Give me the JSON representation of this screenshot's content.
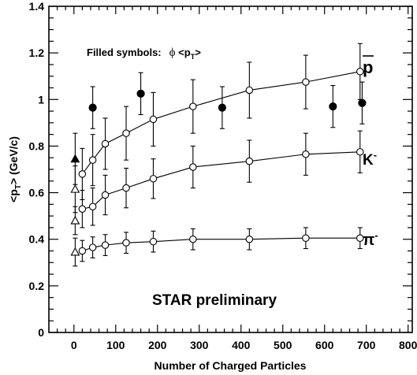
{
  "chart_data": {
    "type": "scatter",
    "xlabel": "Number of Charged Particles",
    "ylabel_main": "<p",
    "ylabel_sub": "T",
    "ylabel_rest": "> (GeV/c)",
    "xlim": [
      -60,
      810
    ],
    "ylim": [
      0,
      1.4
    ],
    "xticks": [
      0,
      100,
      200,
      300,
      400,
      500,
      600,
      700,
      800
    ],
    "yticks": [
      0,
      0.2,
      0.4,
      0.6,
      0.8,
      1,
      1.2,
      1.4
    ],
    "xtick_labels": [
      "0",
      "100",
      "200",
      "300",
      "400",
      "500",
      "600",
      "700",
      "800"
    ],
    "ytick_labels": [
      "0",
      "0.2",
      "0.4",
      "0.6",
      "0.8",
      "1",
      "1.2",
      "1.4"
    ],
    "grid": false,
    "legend_note": {
      "prefix": "Filled symbols:",
      "symbol": "ϕ",
      "text": " <p",
      "sub": "T",
      "suffix": ">"
    },
    "watermark": "STAR preliminary",
    "series": [
      {
        "name": "p̄",
        "label": "p",
        "marker": "open-circle",
        "connected": true,
        "x": [
          20,
          45,
          75,
          125,
          190,
          285,
          420,
          555,
          685
        ],
        "y": [
          0.68,
          0.74,
          0.81,
          0.855,
          0.915,
          0.97,
          1.04,
          1.075,
          1.12
        ],
        "err": [
          0.11,
          0.11,
          0.11,
          0.115,
          0.115,
          0.115,
          0.12,
          0.115,
          0.12
        ]
      },
      {
        "name": "K⁻",
        "label": "K",
        "label_sup": "-",
        "marker": "open-circle",
        "connected": true,
        "x": [
          20,
          45,
          75,
          125,
          190,
          285,
          420,
          555,
          685
        ],
        "y": [
          0.53,
          0.54,
          0.59,
          0.62,
          0.66,
          0.71,
          0.735,
          0.765,
          0.775
        ],
        "err": [
          0.08,
          0.08,
          0.085,
          0.085,
          0.085,
          0.09,
          0.09,
          0.09,
          0.09
        ]
      },
      {
        "name": "π⁻",
        "label": "π",
        "label_sup": "-",
        "marker": "open-circle",
        "connected": true,
        "x": [
          20,
          45,
          75,
          125,
          190,
          285,
          420,
          555,
          685
        ],
        "y": [
          0.35,
          0.365,
          0.375,
          0.385,
          0.39,
          0.4,
          0.4,
          0.405,
          0.405
        ],
        "err": [
          0.045,
          0.045,
          0.045,
          0.045,
          0.045,
          0.045,
          0.045,
          0.045,
          0.045
        ]
      },
      {
        "name": "ϕ",
        "marker": "filled-circle",
        "connected": false,
        "x": [
          45,
          160,
          355,
          620,
          690
        ],
        "y": [
          0.965,
          1.025,
          0.965,
          0.97,
          0.985
        ],
        "err": [
          0.09,
          0.09,
          0.09,
          0.09,
          0.09
        ]
      },
      {
        "name": "open-triangles",
        "marker": "open-triangle",
        "connected": false,
        "x": [
          3,
          3,
          3
        ],
        "y": [
          0.345,
          0.48,
          0.615
        ],
        "err": [
          0.06,
          0.06,
          0.1
        ]
      },
      {
        "name": "filled-triangle",
        "marker": "filled-triangle",
        "connected": false,
        "x": [
          3
        ],
        "y": [
          0.745
        ],
        "err": [
          0.11
        ]
      }
    ]
  }
}
